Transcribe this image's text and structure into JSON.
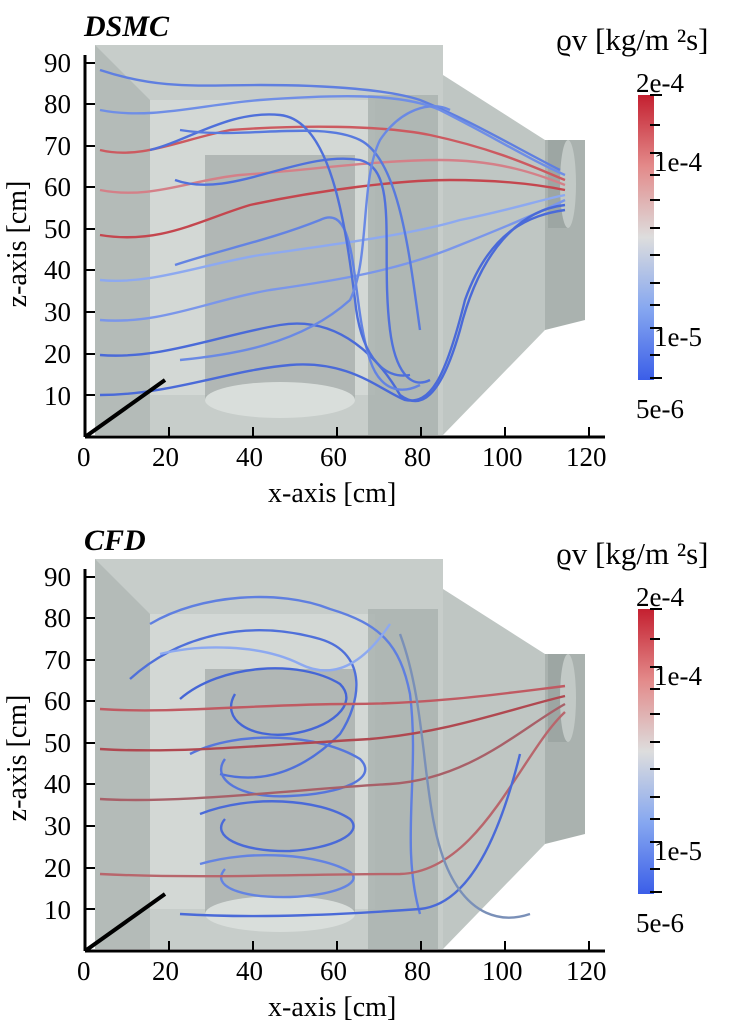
{
  "panels": [
    {
      "title": "DSMC",
      "x_label": "x-axis [cm]",
      "y_label": "z-axis [cm]",
      "x_ticks": [
        "0",
        "20",
        "40",
        "60",
        "80",
        "100",
        "120"
      ],
      "y_ticks": [
        "10",
        "20",
        "30",
        "40",
        "50",
        "60",
        "70",
        "80",
        "90"
      ],
      "colorbar": {
        "label": "ϱv [kg/m ²s]",
        "max": "2e-4",
        "tick_high": "1e-4",
        "tick_low": "1e-5",
        "min": "5e-6",
        "scale": "log",
        "colors": [
          "#3b4cc0",
          "#dddddd",
          "#b40426"
        ]
      }
    },
    {
      "title": "CFD",
      "x_label": "x-axis [cm]",
      "y_label": "z-axis [cm]",
      "x_ticks": [
        "0",
        "20",
        "40",
        "60",
        "80",
        "100",
        "120"
      ],
      "y_ticks": [
        "10",
        "20",
        "30",
        "40",
        "50",
        "60",
        "70",
        "80",
        "90"
      ],
      "colorbar": {
        "label": "ϱv [kg/m ²s]",
        "max": "2e-4",
        "tick_high": "1e-4",
        "tick_low": "1e-5",
        "min": "5e-6",
        "scale": "log",
        "colors": [
          "#3b4cc0",
          "#dddddd",
          "#b40426"
        ]
      }
    }
  ]
}
